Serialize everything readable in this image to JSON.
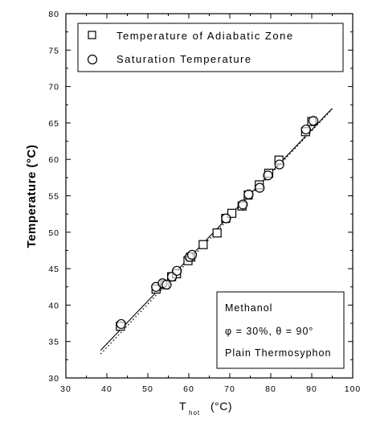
{
  "chart_data": {
    "type": "scatter",
    "xlabel": {
      "main": "T",
      "sub": "hot",
      "unit": "(°C)"
    },
    "ylabel": "Temperature",
    "ylabel_unit": "(°C)",
    "xlim": [
      30,
      100
    ],
    "ylim": [
      30,
      80
    ],
    "xticks": [
      30,
      40,
      50,
      60,
      70,
      80,
      90,
      100
    ],
    "yticks": [
      30,
      35,
      40,
      45,
      50,
      55,
      60,
      65,
      70,
      75,
      80
    ],
    "grid": false,
    "legend_position": "top",
    "series": [
      {
        "name": "Temperature of Adiabatic Zone",
        "marker": "square",
        "x": [
          43.3,
          52.0,
          54.2,
          55.8,
          57.0,
          59.8,
          60.5,
          63.5,
          66.9,
          69.0,
          70.5,
          73.0,
          74.5,
          77.2,
          79.5,
          82.0,
          88.5,
          90.0
        ],
        "y": [
          37.1,
          42.2,
          42.8,
          43.9,
          44.3,
          46.1,
          46.6,
          48.3,
          49.9,
          51.9,
          52.6,
          53.6,
          55.1,
          56.5,
          58.1,
          59.9,
          63.8,
          65.2
        ]
      },
      {
        "name": "Saturation Temperature",
        "marker": "circle",
        "x": [
          43.5,
          52.0,
          53.6,
          54.6,
          55.9,
          57.1,
          60.2,
          60.8,
          69.1,
          73.2,
          74.6,
          77.3,
          79.3,
          82.1,
          88.6,
          90.4
        ],
        "y": [
          37.4,
          42.5,
          43.0,
          42.8,
          43.9,
          44.7,
          46.6,
          46.9,
          51.9,
          53.8,
          55.2,
          56.1,
          57.8,
          59.3,
          64.1,
          65.3
        ]
      }
    ],
    "fit_lines": [
      {
        "style": "solid",
        "x": [
          38.5,
          95.0
        ],
        "y": [
          33.8,
          67.0
        ]
      },
      {
        "style": "dotted",
        "x": [
          38.5,
          95.0
        ],
        "y": [
          33.3,
          66.9
        ]
      }
    ],
    "annotation": {
      "lines": [
        "Methanol",
        "φ = 30%, θ = 90°",
        "Plain Thermosyphon"
      ]
    }
  }
}
